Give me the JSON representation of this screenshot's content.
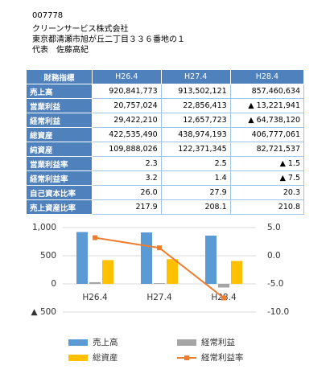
{
  "company": {
    "code": "007778",
    "name": "クリーンサービス株式会社",
    "address": "東京都清瀬市旭が丘二丁目３３６番地の１",
    "representative": "代表　佐藤高紀"
  },
  "table": {
    "header": [
      "財務指標",
      "H26.4",
      "H27.4",
      "H28.4"
    ],
    "rows": [
      [
        "売上高",
        "920,841,773",
        "913,502,121",
        "857,460,634"
      ],
      [
        "営業利益",
        "20,757,024",
        "22,856,413",
        "▲ 13,221,941"
      ],
      [
        "経常利益",
        "29,422,210",
        "12,657,723",
        "▲ 64,738,120"
      ],
      [
        "総資産",
        "422,535,490",
        "438,974,193",
        "406,777,061"
      ],
      [
        "純資産",
        "109,888,026",
        "122,371,345",
        "82,721,537"
      ],
      [
        "営業利益率",
        "2.3",
        "2.5",
        "▲ 1.5"
      ],
      [
        "経常利益率",
        "3.2",
        "1.4",
        "▲ 7.5"
      ],
      [
        "自己資本比率",
        "26.0",
        "27.9",
        "20.3"
      ],
      [
        "売上資産比率",
        "217.9",
        "208.1",
        "210.8"
      ]
    ]
  },
  "chart_data": {
    "type": "bar",
    "categories": [
      "H26.4",
      "H27.4",
      "H28.4"
    ],
    "series": [
      {
        "name": "売上高",
        "color": "#5b9bd5",
        "type": "bar",
        "values": [
          920.8,
          913.5,
          857.5
        ]
      },
      {
        "name": "経常利益",
        "color": "#a5a5a5",
        "type": "bar",
        "values": [
          29.4,
          12.7,
          -64.7
        ]
      },
      {
        "name": "総資産",
        "color": "#ffc000",
        "type": "bar",
        "values": [
          422.5,
          439.0,
          406.8
        ]
      },
      {
        "name": "経常利益率",
        "color": "#ed7d31",
        "type": "line",
        "axis": "y2",
        "values": [
          3.2,
          1.4,
          -7.5
        ]
      }
    ],
    "ylim": [
      -500,
      1000
    ],
    "yticks": [
      {
        "value": -500,
        "label": "▲ 500"
      },
      0,
      500,
      {
        "value": 1000,
        "label": "1,000"
      }
    ],
    "y2lim": [
      -10,
      5
    ],
    "y2ticks": [
      {
        "value": -10,
        "label": "-10.0"
      },
      {
        "value": -5,
        "label": "-5.0"
      },
      {
        "value": 0,
        "label": "0.0"
      },
      {
        "value": 5,
        "label": "5.0"
      }
    ],
    "grid": true
  }
}
